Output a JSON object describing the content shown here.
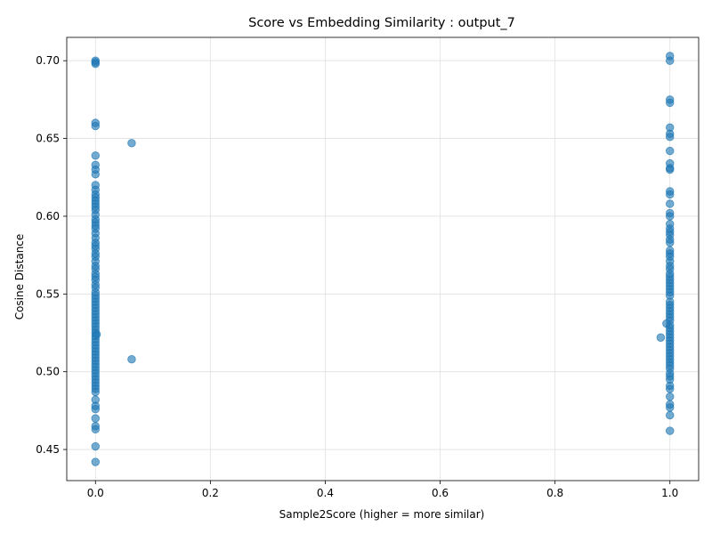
{
  "chart_data": {
    "type": "scatter",
    "title": "Score vs Embedding Similarity : output_7",
    "xlabel": "Sample2Score (higher = more similar)",
    "ylabel": "Cosine Distance",
    "xlim": [
      -0.05,
      1.05
    ],
    "ylim": [
      0.43,
      0.715
    ],
    "x_ticks": [
      0.0,
      0.2,
      0.4,
      0.6,
      0.8,
      1.0
    ],
    "y_ticks": [
      0.45,
      0.5,
      0.55,
      0.6,
      0.65,
      0.7
    ],
    "x_tick_labels": [
      "0.0",
      "0.2",
      "0.4",
      "0.6",
      "0.8",
      "1.0"
    ],
    "y_tick_labels": [
      "0.45",
      "0.50",
      "0.55",
      "0.60",
      "0.65",
      "0.70"
    ],
    "grid": true,
    "colors": {
      "point": "#1f77b4",
      "grid": "#e0e0e0",
      "axis": "#000000"
    },
    "points": [
      [
        0.0,
        0.7
      ],
      [
        0.0,
        0.699
      ],
      [
        0.0,
        0.698
      ],
      [
        0.0,
        0.66
      ],
      [
        0.0,
        0.658
      ],
      [
        0.0,
        0.639
      ],
      [
        0.0,
        0.633
      ],
      [
        0.0,
        0.63
      ],
      [
        0.0,
        0.627
      ],
      [
        0.0,
        0.62
      ],
      [
        0.0,
        0.617
      ],
      [
        0.0,
        0.614
      ],
      [
        0.0,
        0.612
      ],
      [
        0.0,
        0.61
      ],
      [
        0.0,
        0.608
      ],
      [
        0.0,
        0.606
      ],
      [
        0.0,
        0.604
      ],
      [
        0.0,
        0.601
      ],
      [
        0.0,
        0.598
      ],
      [
        0.0,
        0.596
      ],
      [
        0.0,
        0.594
      ],
      [
        0.0,
        0.592
      ],
      [
        0.0,
        0.589
      ],
      [
        0.0,
        0.586
      ],
      [
        0.0,
        0.583
      ],
      [
        0.0,
        0.581
      ],
      [
        0.0,
        0.579
      ],
      [
        0.0,
        0.576
      ],
      [
        0.0,
        0.574
      ],
      [
        0.0,
        0.571
      ],
      [
        0.0,
        0.568
      ],
      [
        0.0,
        0.566
      ],
      [
        0.0,
        0.563
      ],
      [
        0.0,
        0.561
      ],
      [
        0.0,
        0.559
      ],
      [
        0.0,
        0.556
      ],
      [
        0.0,
        0.554
      ],
      [
        0.0,
        0.551
      ],
      [
        0.0,
        0.549
      ],
      [
        0.0,
        0.547
      ],
      [
        0.0,
        0.545
      ],
      [
        0.0,
        0.543
      ],
      [
        0.0,
        0.541
      ],
      [
        0.0,
        0.539
      ],
      [
        0.0,
        0.537
      ],
      [
        0.0,
        0.535
      ],
      [
        0.0,
        0.533
      ],
      [
        0.0,
        0.531
      ],
      [
        0.0,
        0.529
      ],
      [
        0.0,
        0.527
      ],
      [
        0.0,
        0.525
      ],
      [
        0.0,
        0.523
      ],
      [
        0.0,
        0.521
      ],
      [
        0.0,
        0.519
      ],
      [
        0.0,
        0.517
      ],
      [
        0.0,
        0.515
      ],
      [
        0.0,
        0.513
      ],
      [
        0.0,
        0.511
      ],
      [
        0.0,
        0.509
      ],
      [
        0.0,
        0.507
      ],
      [
        0.0,
        0.505
      ],
      [
        0.0,
        0.503
      ],
      [
        0.0,
        0.501
      ],
      [
        0.0,
        0.499
      ],
      [
        0.0,
        0.497
      ],
      [
        0.0,
        0.495
      ],
      [
        0.0,
        0.493
      ],
      [
        0.0,
        0.491
      ],
      [
        0.0,
        0.489
      ],
      [
        0.0,
        0.487
      ],
      [
        0.0,
        0.482
      ],
      [
        0.0,
        0.478
      ],
      [
        0.0,
        0.476
      ],
      [
        0.0,
        0.47
      ],
      [
        0.0,
        0.465
      ],
      [
        0.0,
        0.463
      ],
      [
        0.0,
        0.452
      ],
      [
        0.0,
        0.442
      ],
      [
        0.002,
        0.524
      ],
      [
        0.063,
        0.647
      ],
      [
        0.063,
        0.508
      ],
      [
        1.0,
        0.703
      ],
      [
        1.0,
        0.7
      ],
      [
        1.0,
        0.675
      ],
      [
        1.0,
        0.673
      ],
      [
        1.0,
        0.657
      ],
      [
        1.0,
        0.653
      ],
      [
        1.0,
        0.651
      ],
      [
        1.0,
        0.642
      ],
      [
        1.0,
        0.634
      ],
      [
        1.0,
        0.631
      ],
      [
        1.0,
        0.63
      ],
      [
        1.0,
        0.616
      ],
      [
        1.0,
        0.614
      ],
      [
        1.0,
        0.608
      ],
      [
        1.0,
        0.602
      ],
      [
        1.0,
        0.6
      ],
      [
        1.0,
        0.595
      ],
      [
        1.0,
        0.592
      ],
      [
        1.0,
        0.59
      ],
      [
        1.0,
        0.588
      ],
      [
        1.0,
        0.585
      ],
      [
        1.0,
        0.583
      ],
      [
        1.0,
        0.578
      ],
      [
        1.0,
        0.576
      ],
      [
        1.0,
        0.574
      ],
      [
        1.0,
        0.571
      ],
      [
        1.0,
        0.568
      ],
      [
        1.0,
        0.566
      ],
      [
        1.0,
        0.563
      ],
      [
        1.0,
        0.561
      ],
      [
        1.0,
        0.559
      ],
      [
        1.0,
        0.557
      ],
      [
        1.0,
        0.555
      ],
      [
        1.0,
        0.553
      ],
      [
        1.0,
        0.551
      ],
      [
        1.0,
        0.549
      ],
      [
        1.0,
        0.545
      ],
      [
        1.0,
        0.543
      ],
      [
        1.0,
        0.541
      ],
      [
        1.0,
        0.539
      ],
      [
        1.0,
        0.537
      ],
      [
        1.0,
        0.535
      ],
      [
        1.0,
        0.533
      ],
      [
        1.0,
        0.53
      ],
      [
        1.0,
        0.528
      ],
      [
        1.0,
        0.526
      ],
      [
        1.0,
        0.524
      ],
      [
        1.0,
        0.522
      ],
      [
        1.0,
        0.52
      ],
      [
        1.0,
        0.518
      ],
      [
        1.0,
        0.516
      ],
      [
        1.0,
        0.514
      ],
      [
        1.0,
        0.512
      ],
      [
        1.0,
        0.51
      ],
      [
        1.0,
        0.508
      ],
      [
        1.0,
        0.506
      ],
      [
        1.0,
        0.504
      ],
      [
        1.0,
        0.502
      ],
      [
        1.0,
        0.499
      ],
      [
        1.0,
        0.497
      ],
      [
        1.0,
        0.495
      ],
      [
        1.0,
        0.491
      ],
      [
        1.0,
        0.489
      ],
      [
        1.0,
        0.484
      ],
      [
        1.0,
        0.479
      ],
      [
        1.0,
        0.477
      ],
      [
        1.0,
        0.472
      ],
      [
        1.0,
        0.462
      ],
      [
        0.994,
        0.531
      ],
      [
        0.984,
        0.522
      ]
    ]
  }
}
